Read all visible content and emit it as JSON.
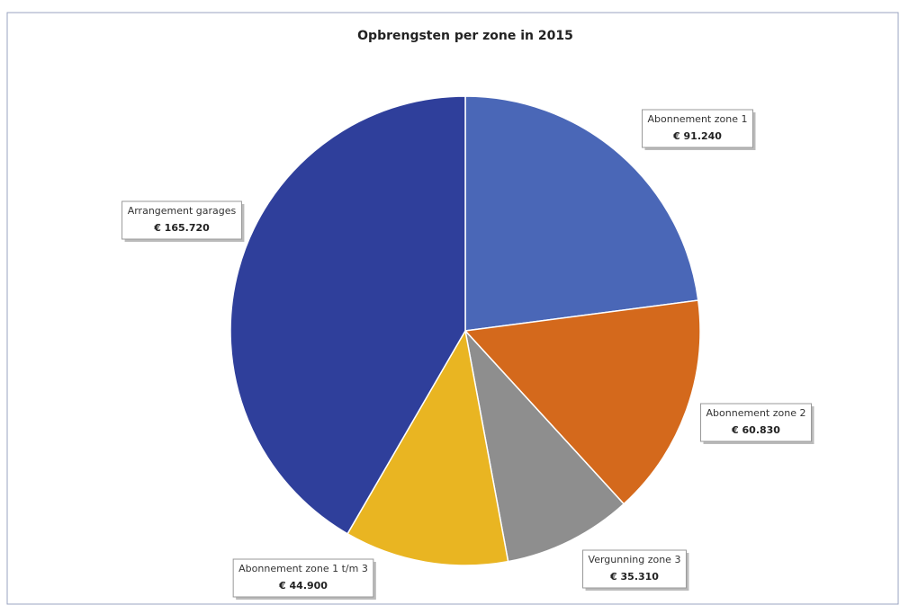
{
  "chart_data": {
    "type": "pie",
    "title": "Opbrengsten per zone in 2015",
    "categories": [
      "Abonnement zone 1",
      "Abonnement zone 2",
      "Vergunning zone 3",
      "Abonnement zone 1 t/m 3",
      "Arrangement garages"
    ],
    "values": [
      91240,
      60830,
      35310,
      44900,
      165720
    ],
    "value_labels": [
      "€ 91.240",
      "€ 60.830",
      "€ 35.310",
      "€ 44.900",
      "€ 165.720"
    ],
    "colors": [
      "#4a67b7",
      "#d4691c",
      "#8e8e8e",
      "#e9b522",
      "#2f3f9b"
    ]
  }
}
